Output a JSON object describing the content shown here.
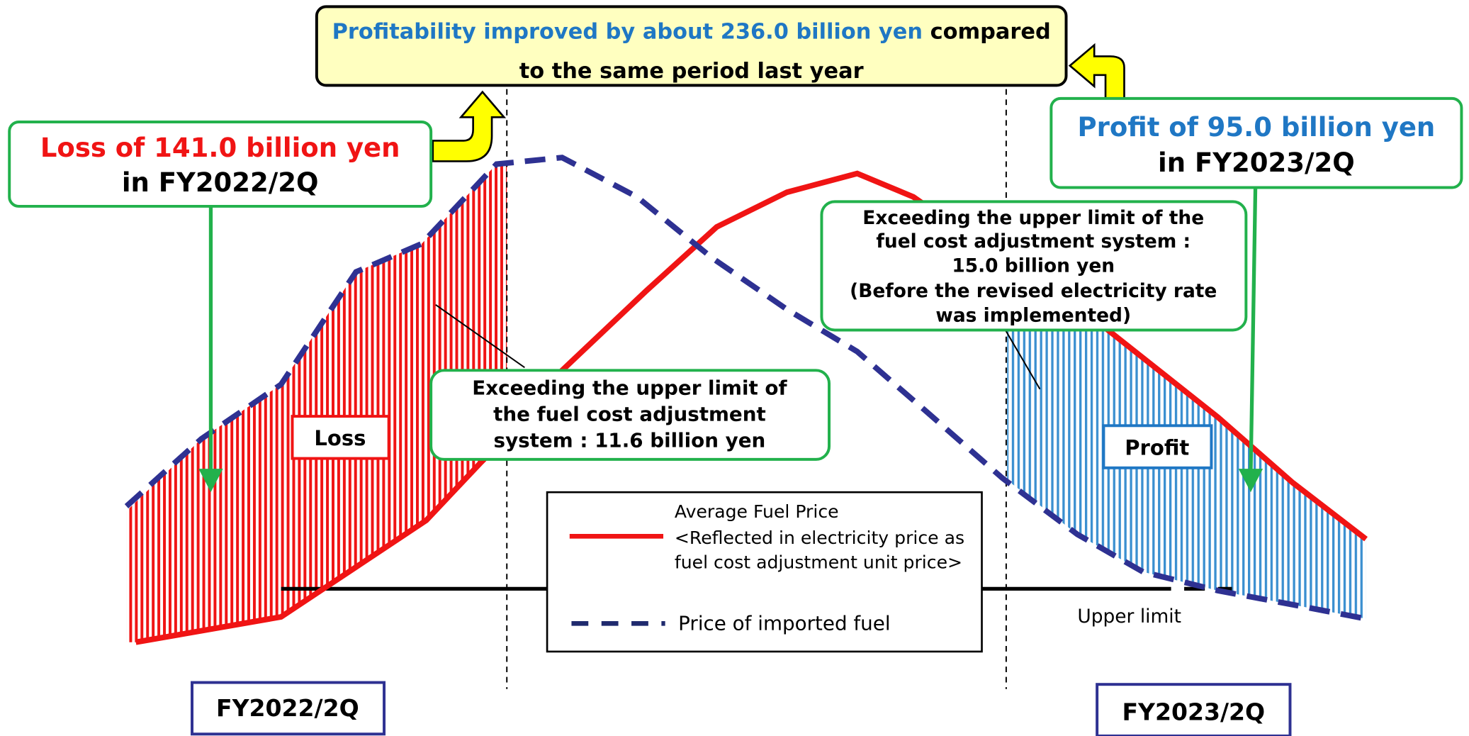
{
  "banner": {
    "highlight": "Profitability improved by about 236.0 billion yen",
    "lines": [
      "compared",
      "to the same period last year"
    ]
  },
  "loss_callout": {
    "lines": [
      "Loss of 141.0 billion yen",
      "in FY2022/2Q"
    ]
  },
  "profit_callout": {
    "lines": [
      "Profit of 95.0 billion yen",
      "in FY2023/2Q"
    ]
  },
  "note_right": {
    "lines": [
      "Exceeding the upper limit of the",
      "fuel cost adjustment system :",
      "15.0 billion yen",
      "(Before the revised electricity rate",
      "was implemented)"
    ]
  },
  "note_left": {
    "lines": [
      "Exceeding the upper limit of",
      "the fuel cost adjustment",
      "system : 11.6 billion yen"
    ]
  },
  "loss_label": "Loss",
  "profit_label": "Profit",
  "legend": {
    "average": [
      "Average Fuel Price",
      "<Reflected in electricity price as",
      "fuel cost adjustment unit price>"
    ],
    "imported": "Price of imported fuel"
  },
  "upper_limit": "Upper limit",
  "period_left": "FY2022/2Q",
  "period_right": "FY2023/2Q"
}
